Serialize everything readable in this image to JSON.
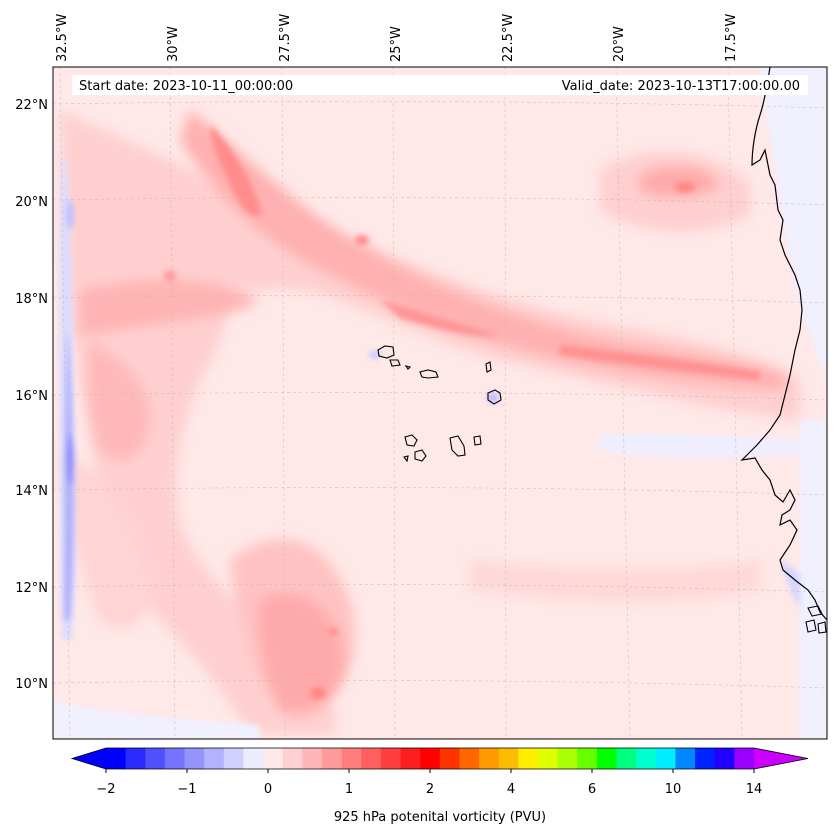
{
  "map": {
    "start_date": "Start date: 2023-10-11_00:00:00",
    "valid_date": "Valid_date: 2023-10-13T17:00:00.00",
    "lon_labels": [
      "32.5°W",
      "30°W",
      "27.5°W",
      "25°W",
      "22.5°W",
      "20°W",
      "17.5°W"
    ],
    "lat_labels": [
      "22°N",
      "20°N",
      "18°N",
      "16°N",
      "14°N",
      "12°N",
      "10°N"
    ],
    "gridlines": true
  },
  "colorbar": {
    "label": "925 hPa potenital vorticity (PVU)",
    "tick_labels": [
      "−2",
      "−1",
      "0",
      "1",
      "2",
      "4",
      "6",
      "10",
      "14"
    ],
    "colors": [
      "#0000ff",
      "#2a2aff",
      "#5050ff",
      "#7474ff",
      "#9494ff",
      "#b2b2ff",
      "#d0d0ff",
      "#ececff",
      "#ffe8e8",
      "#ffd0d0",
      "#ffb6b6",
      "#ff9a9a",
      "#ff7d7d",
      "#ff5f5f",
      "#ff3f3f",
      "#ff1e1e",
      "#ff0000",
      "#ff3300",
      "#ff6600",
      "#ff9900",
      "#ffbb00",
      "#ffee00",
      "#ddff00",
      "#aaff00",
      "#66ff00",
      "#00ff00",
      "#00ff80",
      "#00ffcc",
      "#00eeff",
      "#0088ff",
      "#0022ff",
      "#2200ff",
      "#9900ff"
    ],
    "extend_low_color": "#0000ff",
    "extend_high_color": "#cc00ff"
  },
  "chart_data": {
    "type": "heatmap",
    "variable": "925 hPa potenital vorticity (PVU)",
    "lon_range": [
      -33,
      -15.5
    ],
    "lat_range": [
      9,
      22.8
    ],
    "color_levels": [
      -2,
      -1,
      0,
      1,
      2,
      4,
      6,
      10,
      14
    ],
    "extend": "both"
  }
}
